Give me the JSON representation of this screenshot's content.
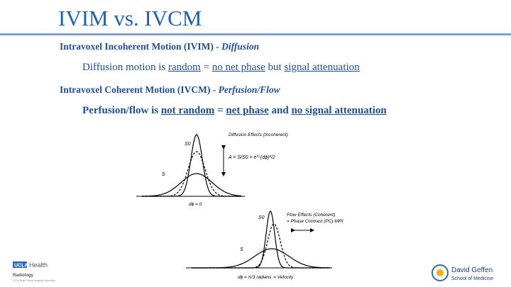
{
  "header": {
    "title": "IVIM vs. IVCM"
  },
  "body": {
    "line1": {
      "text": "Intravoxel Incoherent Motion (IVIM) - ",
      "emph": "Diffusion"
    },
    "line2": [
      "Diffusion motion is ",
      "random",
      " = ",
      "no net phase",
      " but ",
      "signal attenuation"
    ],
    "line3": {
      "text": "Intravoxel Coherent Motion (IVCM) - ",
      "emph": "Perfusion/Flow"
    },
    "line4": [
      "Perfusion/flow is ",
      "not random",
      " = ",
      "net phase",
      " and ",
      "no signal attenuation"
    ]
  },
  "figure1": {
    "title": "Diffusion Effects (Incoherent)",
    "s0": "S0",
    "s": "S",
    "formula": "A = S/S0 = e^-(dϕ)²/2",
    "dphi": "dϕ = 0"
  },
  "figure2": {
    "title": "Flow Effects (Coherent)",
    "subtitle": "= Phase Contrast (PC)-MRI",
    "s0": "S0",
    "s": "S",
    "dphi": "dϕ = π/3 radians ∝ Velocity"
  },
  "logos": {
    "ucla": "UCLA",
    "health": "Health",
    "radiology": "Radiology",
    "lab": "UCLA Brain Tumor Imaging Laboratory",
    "geffen": "David Geffen",
    "school": "School of Medicine"
  }
}
